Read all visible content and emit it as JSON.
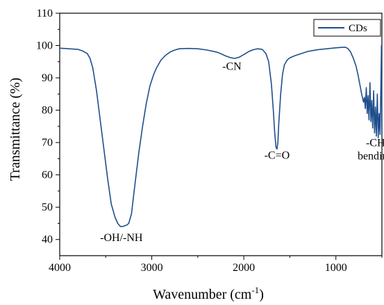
{
  "chart_data": {
    "type": "line",
    "xlabel": "Wavenumber (cm",
    "xlabel_sup": "-1",
    "xlabel_end": ")",
    "ylabel": "Transmittance (%)",
    "xlim": [
      4000,
      500
    ],
    "ylim": [
      35,
      110
    ],
    "x_reversed": true,
    "x_ticks": [
      4000,
      3000,
      2000,
      1000
    ],
    "y_ticks": [
      40,
      50,
      60,
      70,
      80,
      90,
      100,
      110
    ],
    "grid": false,
    "legend_position": "top-right",
    "line_color": "#1f4e8c",
    "series": [
      {
        "name": "CDs",
        "points": [
          [
            4000,
            99.2
          ],
          [
            3900,
            99.0
          ],
          [
            3800,
            98.8
          ],
          [
            3750,
            98.3
          ],
          [
            3700,
            97.5
          ],
          [
            3670,
            96.0
          ],
          [
            3640,
            93.0
          ],
          [
            3600,
            86.0
          ],
          [
            3560,
            77.0
          ],
          [
            3520,
            68.0
          ],
          [
            3480,
            59.0
          ],
          [
            3440,
            51.0
          ],
          [
            3400,
            47.0
          ],
          [
            3370,
            45.0
          ],
          [
            3340,
            44.0
          ],
          [
            3320,
            44.0
          ],
          [
            3300,
            44.2
          ],
          [
            3270,
            44.5
          ],
          [
            3250,
            45.0
          ],
          [
            3220,
            48.0
          ],
          [
            3200,
            53.0
          ],
          [
            3170,
            60.0
          ],
          [
            3140,
            67.0
          ],
          [
            3100,
            75.0
          ],
          [
            3060,
            82.0
          ],
          [
            3020,
            87.5
          ],
          [
            2980,
            91.0
          ],
          [
            2950,
            93.0
          ],
          [
            2900,
            95.5
          ],
          [
            2850,
            97.0
          ],
          [
            2800,
            98.0
          ],
          [
            2750,
            98.6
          ],
          [
            2700,
            99.0
          ],
          [
            2600,
            99.1
          ],
          [
            2500,
            99.0
          ],
          [
            2400,
            98.6
          ],
          [
            2300,
            98.0
          ],
          [
            2250,
            97.5
          ],
          [
            2200,
            96.8
          ],
          [
            2150,
            96.3
          ],
          [
            2100,
            96.0
          ],
          [
            2050,
            96.4
          ],
          [
            2000,
            97.2
          ],
          [
            1950,
            98.1
          ],
          [
            1900,
            98.7
          ],
          [
            1850,
            99.0
          ],
          [
            1800,
            98.8
          ],
          [
            1760,
            97.5
          ],
          [
            1730,
            95.0
          ],
          [
            1700,
            88.0
          ],
          [
            1680,
            80.0
          ],
          [
            1665,
            73.0
          ],
          [
            1650,
            68.5
          ],
          [
            1640,
            68.0
          ],
          [
            1630,
            70.0
          ],
          [
            1620,
            76.0
          ],
          [
            1600,
            85.0
          ],
          [
            1580,
            91.0
          ],
          [
            1560,
            94.0
          ],
          [
            1530,
            95.5
          ],
          [
            1500,
            96.2
          ],
          [
            1450,
            96.8
          ],
          [
            1400,
            97.3
          ],
          [
            1300,
            98.2
          ],
          [
            1200,
            98.7
          ],
          [
            1100,
            99.0
          ],
          [
            1000,
            99.3
          ],
          [
            950,
            99.4
          ],
          [
            900,
            99.5
          ],
          [
            870,
            99.1
          ],
          [
            840,
            98.0
          ],
          [
            810,
            96.0
          ],
          [
            780,
            93.5
          ],
          [
            760,
            91.0
          ],
          [
            740,
            88.0
          ],
          [
            720,
            85.0
          ],
          [
            700,
            82.5
          ],
          [
            690,
            84.0
          ],
          [
            680,
            80.5
          ],
          [
            670,
            87.0
          ],
          [
            660,
            79.0
          ],
          [
            650,
            84.5
          ],
          [
            640,
            77.0
          ],
          [
            630,
            88.5
          ],
          [
            620,
            76.5
          ],
          [
            610,
            83.0
          ],
          [
            600,
            74.5
          ],
          [
            590,
            86.0
          ],
          [
            580,
            73.0
          ],
          [
            570,
            81.0
          ],
          [
            560,
            72.0
          ],
          [
            550,
            85.0
          ],
          [
            540,
            71.5
          ],
          [
            530,
            79.0
          ],
          [
            520,
            72.5
          ],
          [
            510,
            90.0
          ],
          [
            505,
            100.0
          ],
          [
            500,
            72.0
          ]
        ]
      }
    ],
    "annotations": [
      {
        "text": "-OH/-NH",
        "x": 3330,
        "y": 39.5,
        "anchor": "middle"
      },
      {
        "text": "-CN",
        "x": 2130,
        "y": 92.5,
        "anchor": "middle"
      },
      {
        "text": "-C=O",
        "x": 1640,
        "y": 65.0,
        "anchor": "middle"
      },
      {
        "text": "-CH",
        "x": 570,
        "y": 68.8,
        "anchor": "middle"
      },
      {
        "text": "bending",
        "x": 570,
        "y": 64.8,
        "anchor": "middle"
      }
    ]
  }
}
